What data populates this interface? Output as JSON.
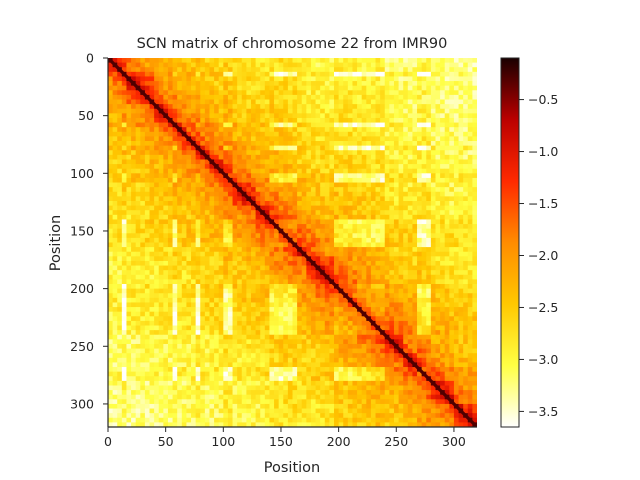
{
  "chart_data": {
    "type": "heatmap",
    "title": "SCN matrix of chromosome 22 from IMR90",
    "xlabel": "Position",
    "ylabel": "Position",
    "matrix_size": 320,
    "xlim": [
      0,
      320
    ],
    "ylim": [
      320,
      0
    ],
    "x_ticks": [
      0,
      50,
      100,
      150,
      200,
      250,
      300
    ],
    "x_tick_labels": [
      "0",
      "50",
      "100",
      "150",
      "200",
      "250",
      "300"
    ],
    "y_ticks": [
      0,
      50,
      100,
      150,
      200,
      250,
      300
    ],
    "y_tick_labels": [
      "0",
      "50",
      "100",
      "150",
      "200",
      "250",
      "300"
    ],
    "colormap": "hot_r",
    "color_range": [
      -3.65,
      -0.1
    ],
    "colorbar_ticks": [
      -0.5,
      -1.0,
      -1.5,
      -2.0,
      -2.5,
      -3.0,
      -3.5
    ],
    "colorbar_tick_labels": [
      "−0.5",
      "−1.0",
      "−1.5",
      "−2.0",
      "−2.5",
      "−3.0",
      "−3.5"
    ],
    "domain_boundaries": [
      0,
      12,
      18,
      42,
      55,
      60,
      68,
      75,
      80,
      90,
      100,
      110,
      128,
      140,
      165,
      172,
      195,
      240,
      255,
      270,
      280,
      300,
      320
    ],
    "diagonal_value": -0.3,
    "grid": false
  },
  "colors": {
    "colormap_stops": [
      "#ffffff",
      "#ffff44",
      "#ffc800",
      "#ff8c00",
      "#ff2a00",
      "#bb0000",
      "#1a0000"
    ]
  }
}
